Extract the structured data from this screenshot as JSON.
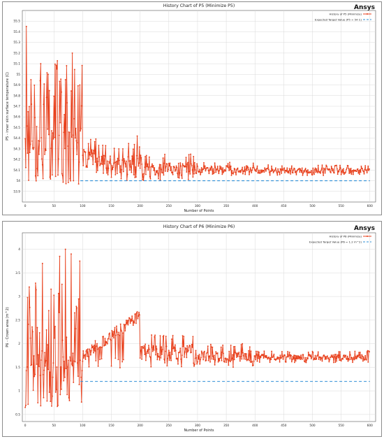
{
  "brand": "Ansys",
  "colors": {
    "series": "#e8401c",
    "target": "#2f8fd6",
    "grid": "#d9d9d9",
    "axis": "#555555"
  },
  "chart_data": [
    {
      "type": "line",
      "title": "History Chart of P5 (Minimize P5)",
      "xlabel": "Number of Points",
      "ylabel": "P5 - inner skin surface temperature (C)",
      "xlim": [
        -5,
        610
      ],
      "ylim": [
        53.8,
        55.6
      ],
      "xticks": [
        0,
        50,
        100,
        150,
        200,
        250,
        300,
        350,
        400,
        450,
        500,
        550,
        600
      ],
      "yticks": [
        53.9,
        54,
        54.1,
        54.2,
        54.3,
        54.4,
        54.5,
        54.6,
        54.7,
        54.8,
        54.9,
        55,
        55.1,
        55.2,
        55.3,
        55.4,
        55.5
      ],
      "legend_position": "top-right",
      "series": [
        {
          "name": "History of P5 (Minimize)",
          "style": "line-markers",
          "segments": [
            {
              "x": [
                0,
                100
              ],
              "min": 53.97,
              "max": 55.45,
              "spikes": [
                [
                  2,
                  55.45
                ],
                [
                  27,
                  55.1
                ],
                [
                  55,
                  55.05
                ],
                [
                  82,
                  55.2
                ],
                [
                  10,
                  54.95
                ],
                [
                  40,
                  55.0
                ],
                [
                  70,
                  54.95
                ],
                [
                  95,
                  54.9
                ]
              ]
            },
            {
              "x": [
                100,
                125
              ],
              "min": 54.05,
              "max": 54.4
            },
            {
              "x": [
                125,
                200
              ],
              "min": 53.98,
              "max": 54.35,
              "spikes": [
                [
                  195,
                  54.42
                ],
                [
                  180,
                  54.35
                ],
                [
                  163,
                  54.3
                ]
              ]
            },
            {
              "x": [
                200,
                300
              ],
              "min": 54.0,
              "max": 54.25
            },
            {
              "x": [
                300,
                400
              ],
              "min": 54.05,
              "max": 54.18
            },
            {
              "x": [
                400,
                600
              ],
              "min": 54.05,
              "max": 54.15
            }
          ]
        },
        {
          "name": "Expected Target Value (P5 = 54 C)",
          "style": "dashed",
          "x": [
            96,
            600
          ],
          "y": [
            54,
            54
          ]
        }
      ]
    },
    {
      "type": "line",
      "title": "History Chart of P6 (Minimize P6)",
      "xlabel": "Number of Points",
      "ylabel": "P6 - Crown area  (m^2)",
      "xlim": [
        -5,
        610
      ],
      "ylim": [
        0.35,
        4.35
      ],
      "xticks": [
        0,
        50,
        100,
        150,
        200,
        250,
        300,
        350,
        400,
        450,
        500,
        550,
        600
      ],
      "yticks": [
        0.5,
        1,
        1.5,
        2,
        2.5,
        3,
        3.5,
        4
      ],
      "legend_position": "top-right",
      "series": [
        {
          "name": "History of P6 (Minimize)",
          "style": "line-markers",
          "segments": [
            {
              "x": [
                0,
                100
              ],
              "min": 0.65,
              "max": 4.0,
              "spikes": [
                [
                  0,
                  0.65
                ],
                [
                  70,
                  4.0
                ],
                [
                  80,
                  3.9
                ],
                [
                  60,
                  3.85
                ],
                [
                  30,
                  3.7
                ],
                [
                  95,
                  3.75
                ]
              ]
            },
            {
              "x": [
                100,
                200
              ],
              "min": 1.4,
              "max": 2.7,
              "trend": [
                1.75,
                2.6
              ]
            },
            {
              "x": [
                200,
                300
              ],
              "min": 1.5,
              "max": 2.2
            },
            {
              "x": [
                300,
                400
              ],
              "min": 1.5,
              "max": 2.0
            },
            {
              "x": [
                400,
                600
              ],
              "min": 1.6,
              "max": 1.85
            }
          ]
        },
        {
          "name": "Expected Target Value (P6 = 1.2 m^2)",
          "style": "dashed",
          "x": [
            96,
            600
          ],
          "y": [
            1.2,
            1.2
          ]
        }
      ]
    }
  ]
}
